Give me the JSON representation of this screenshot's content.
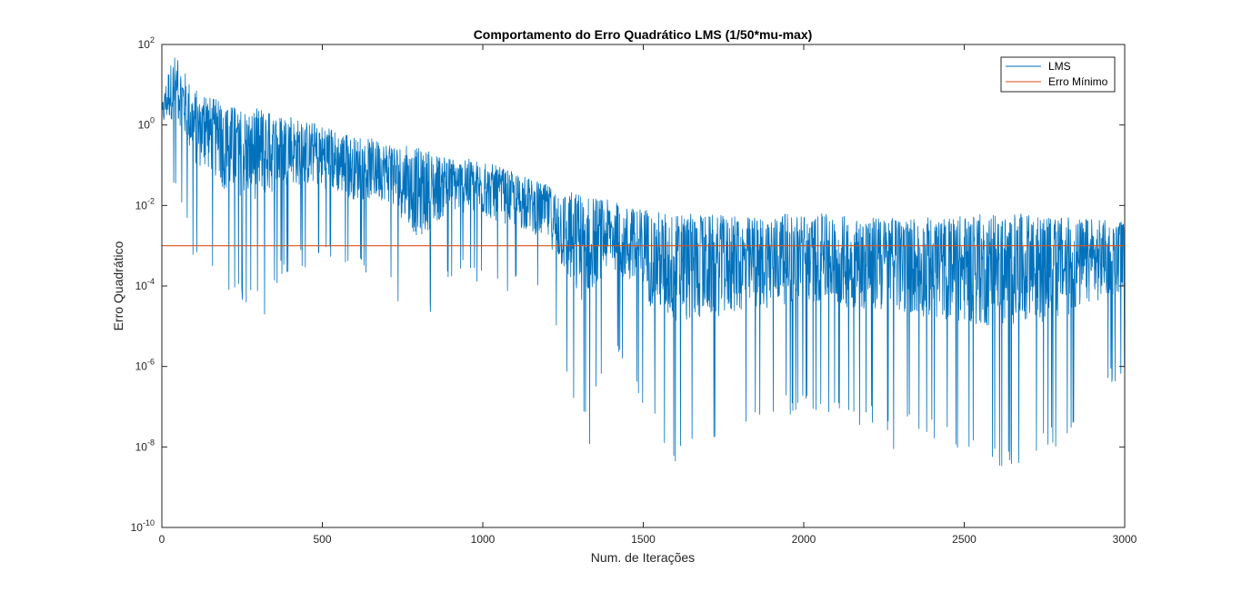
{
  "chart_data": {
    "type": "line",
    "title": "Comportamento do Erro Quadrático LMS (1/50*mu-max)",
    "xlabel": "Num. de Iterações",
    "ylabel": "Erro Quadrático",
    "xlim": [
      0,
      3000
    ],
    "ylim": [
      1e-10,
      100
    ],
    "y_scale": "log",
    "grid": false,
    "legend_position": "top-right",
    "x_ticks": [
      0,
      500,
      1000,
      1500,
      2000,
      2500,
      3000
    ],
    "y_tick_exponents": [
      -10,
      -8,
      -6,
      -4,
      -2,
      0,
      2
    ],
    "y_tick_base": "10",
    "series": [
      {
        "name": "LMS",
        "color": "#0072BD",
        "envelope_log10": {
          "x": [
            0,
            20,
            40,
            60,
            100,
            150,
            200,
            300,
            400,
            500,
            600,
            700,
            800,
            900,
            1000,
            1100,
            1200,
            1300,
            1400,
            1500,
            1600,
            1800,
            2000,
            2200,
            2400,
            2600,
            2800,
            3000
          ],
          "upper": [
            0.5,
            1.4,
            1.72,
            1.5,
            0.9,
            0.7,
            0.5,
            0.4,
            0.2,
            0.0,
            -0.3,
            -0.4,
            -0.6,
            -0.8,
            -0.9,
            -1.2,
            -1.5,
            -1.7,
            -1.9,
            -2.1,
            -2.2,
            -2.3,
            -2.2,
            -2.3,
            -2.3,
            -2.2,
            -2.3,
            -2.4
          ],
          "lower": [
            -0.8,
            -1.5,
            -1.8,
            -2.0,
            -3.4,
            -3.4,
            -4.4,
            -4.7,
            -3.6,
            -3.5,
            -3.8,
            -3.7,
            -5.6,
            -3.8,
            -4.0,
            -4.2,
            -4.5,
            -7.9,
            -5.5,
            -7.2,
            -8.4,
            -7.6,
            -7.1,
            -7.5,
            -7.9,
            -8.6,
            -8.0,
            -6.2
          ]
        },
        "highlights": [
          {
            "x": 50,
            "y": 40
          },
          {
            "x": 320,
            "y": 2e-05
          },
          {
            "x": 1333,
            "y": 1.2e-08
          },
          {
            "x": 1600,
            "y": 4.5e-09
          },
          {
            "x": 2280,
            "y": 9e-09
          },
          {
            "x": 2610,
            "y": 3.5e-09
          }
        ]
      },
      {
        "name": "Erro Mínimo",
        "color": "#D95319",
        "x": [
          0,
          3000
        ],
        "values": [
          0.001,
          0.001
        ]
      }
    ]
  }
}
